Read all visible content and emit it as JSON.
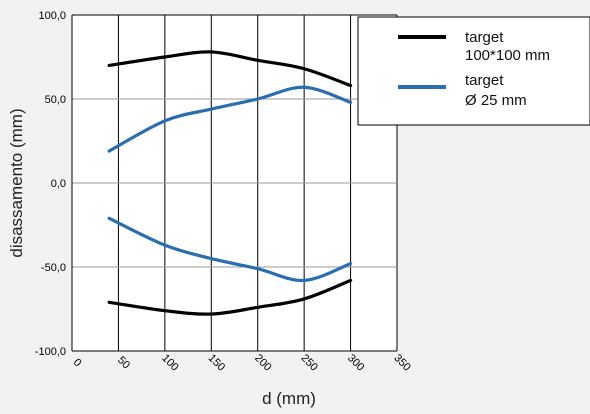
{
  "chart_data": {
    "type": "line",
    "xlabel": "d (mm)",
    "ylabel": "disassamento (mm)",
    "xlim": [
      0,
      350
    ],
    "ylim": [
      -100,
      100
    ],
    "x_ticks": [
      "0",
      "50",
      "100",
      "150",
      "200",
      "250",
      "300",
      "350"
    ],
    "y_ticks": [
      "100,0",
      "50,0",
      "0,0",
      "-50,0",
      "-100,0"
    ],
    "grid": "vertical and horizontal",
    "legend_position": "top-right",
    "colors": {
      "target_100": "#000000",
      "target_25": "#2a6db0",
      "background": "#f2f2f2",
      "plot_bg": "#ffffff"
    },
    "legend": [
      {
        "key": "target_100",
        "line1": "target",
        "line2": "100*100 mm",
        "color": "#000000"
      },
      {
        "key": "target_25",
        "line1": "target",
        "line2": "Ø 25 mm",
        "color": "#2a6db0"
      }
    ],
    "series": [
      {
        "key": "target_100",
        "color": "#000000",
        "x": [
          40,
          100,
          150,
          200,
          250,
          300
        ],
        "y": [
          70,
          75,
          78,
          73,
          68,
          58
        ]
      },
      {
        "key": "target_100",
        "color": "#000000",
        "x": [
          40,
          100,
          150,
          200,
          250,
          300
        ],
        "y": [
          -71,
          -76,
          -78,
          -74,
          -69,
          -58
        ]
      },
      {
        "key": "target_25",
        "color": "#2a6db0",
        "x": [
          40,
          100,
          150,
          200,
          250,
          300
        ],
        "y": [
          19,
          37,
          44,
          50,
          57,
          48
        ]
      },
      {
        "key": "target_25",
        "color": "#2a6db0",
        "x": [
          40,
          100,
          150,
          200,
          250,
          300
        ],
        "y": [
          -21,
          -37,
          -45,
          -51,
          -58,
          -48
        ]
      }
    ]
  }
}
